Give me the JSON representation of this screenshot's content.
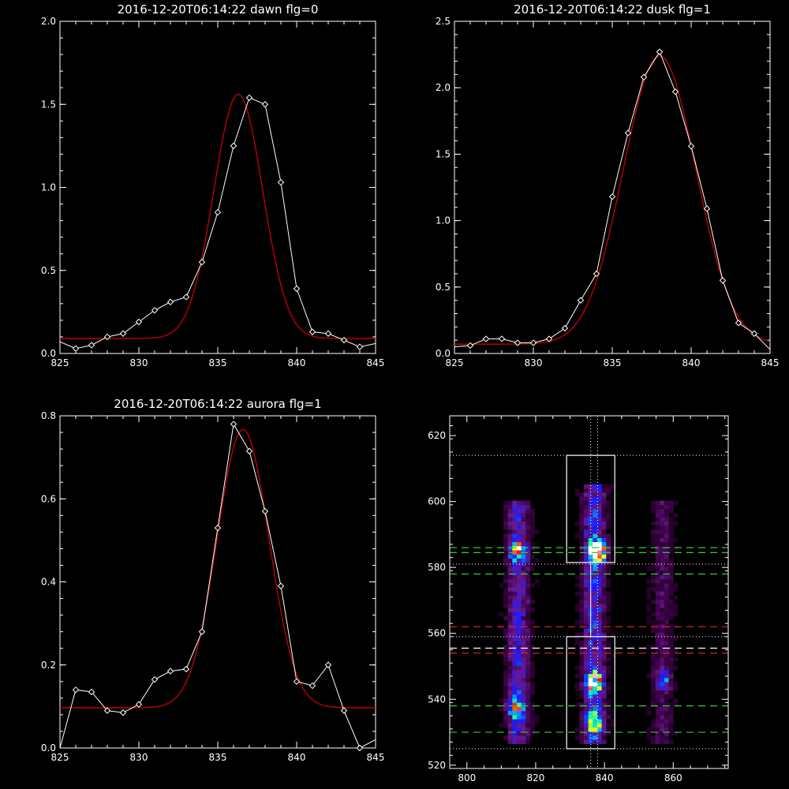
{
  "colors": {
    "background": "#000000",
    "axes": "#ffffff",
    "data_line": "#ffffff",
    "fit_line": "#cc0000",
    "green_lines": "#33cc33",
    "red_lines": "#cc2222",
    "boxes": "#ffffff"
  },
  "chart_data": [
    {
      "type": "line",
      "title": "2016-12-20T06:14:22 dawn flg=0",
      "xlabel": "",
      "ylabel": "",
      "xlim": [
        825,
        845
      ],
      "ylim": [
        0,
        2.0
      ],
      "xticks": [
        825,
        830,
        835,
        840,
        845
      ],
      "xtick_labels": [
        "825",
        "830",
        "835",
        "840",
        "845"
      ],
      "yticks": [
        0,
        0.5,
        1.0,
        1.5,
        2.0
      ],
      "ytick_labels": [
        "0.0",
        "0.5",
        "1.0",
        "1.5",
        "2.0"
      ],
      "series": [
        {
          "role": "data",
          "markers": "diamond",
          "x": [
            825,
            826,
            827,
            828,
            829,
            830,
            831,
            832,
            833,
            834,
            835,
            836,
            837,
            838,
            839,
            840,
            841,
            842,
            843,
            844,
            845
          ],
          "y": [
            0.07,
            0.03,
            0.05,
            0.1,
            0.12,
            0.19,
            0.26,
            0.31,
            0.34,
            0.55,
            0.85,
            1.25,
            1.54,
            1.5,
            1.03,
            0.39,
            0.13,
            0.12,
            0.08,
            0.04,
            0.06
          ]
        },
        {
          "role": "fit",
          "shape": "gaussian",
          "center": 836.3,
          "sigma": 1.55,
          "amplitude": 1.47,
          "baseline": 0.09
        }
      ]
    },
    {
      "type": "line",
      "title": "2016-12-20T06:14:22 dusk flg=1",
      "xlabel": "",
      "ylabel": "",
      "xlim": [
        825,
        845
      ],
      "ylim": [
        0,
        2.5
      ],
      "xticks": [
        825,
        830,
        835,
        840,
        845
      ],
      "xtick_labels": [
        "825",
        "830",
        "835",
        "840",
        "845"
      ],
      "yticks": [
        0,
        0.5,
        1.0,
        1.5,
        2.0,
        2.5
      ],
      "ytick_labels": [
        "0.0",
        "0.5",
        "1.0",
        "1.5",
        "2.0",
        "2.5"
      ],
      "series": [
        {
          "role": "data",
          "markers": "diamond",
          "x": [
            825,
            826,
            827,
            828,
            829,
            830,
            831,
            832,
            833,
            834,
            835,
            836,
            837,
            838,
            839,
            840,
            841,
            842,
            843,
            844,
            845
          ],
          "y": [
            0.05,
            0.06,
            0.11,
            0.11,
            0.08,
            0.08,
            0.11,
            0.19,
            0.4,
            0.6,
            1.18,
            1.66,
            2.08,
            2.27,
            1.97,
            1.56,
            1.09,
            0.55,
            0.23,
            0.15,
            0.03
          ]
        },
        {
          "role": "fit",
          "shape": "gaussian",
          "center": 838.0,
          "sigma": 2.3,
          "amplitude": 2.17,
          "baseline": 0.07
        }
      ]
    },
    {
      "type": "line",
      "title": "2016-12-20T06:14:22 aurora flg=1",
      "xlabel": "",
      "ylabel": "",
      "xlim": [
        825,
        845
      ],
      "ylim": [
        0,
        0.8
      ],
      "xticks": [
        825,
        830,
        835,
        840,
        845
      ],
      "xtick_labels": [
        "825",
        "830",
        "835",
        "840",
        "845"
      ],
      "yticks": [
        0,
        0.2,
        0.4,
        0.6,
        0.8
      ],
      "ytick_labels": [
        "0.0",
        "0.2",
        "0.4",
        "0.6",
        "0.8"
      ],
      "series": [
        {
          "role": "data",
          "markers": "diamond",
          "x": [
            825,
            826,
            827,
            828,
            829,
            830,
            831,
            832,
            833,
            834,
            835,
            836,
            837,
            838,
            839,
            840,
            841,
            842,
            843,
            844,
            845
          ],
          "y": [
            0.0,
            0.14,
            0.135,
            0.09,
            0.085,
            0.105,
            0.165,
            0.185,
            0.19,
            0.28,
            0.53,
            0.78,
            0.715,
            0.57,
            0.39,
            0.16,
            0.15,
            0.2,
            0.09,
            0.0,
            0.02
          ]
        },
        {
          "role": "fit",
          "shape": "gaussian",
          "center": 836.6,
          "sigma": 1.65,
          "amplitude": 0.67,
          "baseline": 0.097
        }
      ]
    },
    {
      "type": "heatmap",
      "title": "",
      "xlabel": "",
      "ylabel": "",
      "xlim": [
        795,
        876
      ],
      "ylim": [
        519,
        626
      ],
      "xticks": [
        800,
        820,
        840,
        860
      ],
      "xtick_labels": [
        "800",
        "820",
        "840",
        "860"
      ],
      "yticks": [
        520,
        540,
        560,
        580,
        600,
        620
      ],
      "ytick_labels": [
        "520",
        "540",
        "560",
        "580",
        "600",
        "620"
      ],
      "colormap": [
        "#000000",
        "#3a0044",
        "#6a1a8c",
        "#1a1aff",
        "#00a0ff",
        "#00ffb0",
        "#ffff00",
        "#ff0000",
        "#ffffff"
      ],
      "hot_spots": [
        {
          "x": 815,
          "y": 585,
          "intensity": 0.55
        },
        {
          "x": 838,
          "y": 585,
          "intensity": 1.0
        },
        {
          "x": 814,
          "y": 537,
          "intensity": 0.45
        },
        {
          "x": 837,
          "y": 545,
          "intensity": 0.6
        },
        {
          "x": 837,
          "y": 533,
          "intensity": 0.55
        },
        {
          "x": 857,
          "y": 546,
          "intensity": 0.3
        }
      ],
      "vertical_bands": [
        {
          "x": 815,
          "y_range": [
            527,
            600
          ],
          "intensity": 0.25
        },
        {
          "x": 837,
          "y_range": [
            527,
            605
          ],
          "intensity": 0.3
        },
        {
          "x": 857,
          "y_range": [
            527,
            600
          ],
          "intensity": 0.12
        }
      ],
      "boxes": [
        {
          "x_range": [
            829,
            843
          ],
          "y_range": [
            581.5,
            614
          ]
        },
        {
          "x_range": [
            829,
            843
          ],
          "y_range": [
            525,
            559
          ]
        }
      ],
      "dotted_horizontal_lines": [
        614,
        581,
        559,
        525
      ],
      "dotted_vertical_lines": [
        836,
        838
      ],
      "green_dashed_lines": [
        586,
        584.5,
        578,
        538,
        530
      ],
      "red_dashed_lines": [
        562,
        554
      ],
      "white_dashed_lines": [
        555.5
      ]
    }
  ]
}
